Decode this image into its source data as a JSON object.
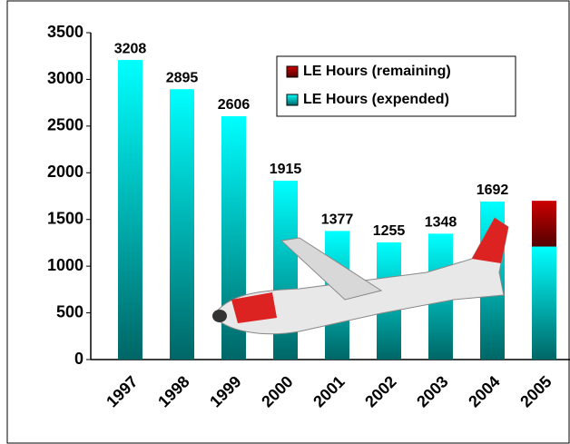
{
  "chart_data": {
    "type": "stacked-bar",
    "categories": [
      "1997",
      "1998",
      "1999",
      "2000",
      "2001",
      "2002",
      "2003",
      "2004",
      "2005"
    ],
    "series": [
      {
        "name": "LE Hours (remaining)",
        "color": "#cc0000",
        "values": [
          null,
          null,
          null,
          null,
          null,
          null,
          null,
          null,
          490
        ]
      },
      {
        "name": "LE Hours (expended)",
        "color": "#00ffff",
        "values": [
          3208,
          2895,
          2606,
          1915,
          1377,
          1255,
          1348,
          1692,
          1210
        ]
      }
    ],
    "ylim": [
      0,
      3500
    ],
    "yticks": [
      0,
      500,
      1000,
      1500,
      2000,
      2500,
      3000,
      3500
    ],
    "legend": "upper right"
  }
}
